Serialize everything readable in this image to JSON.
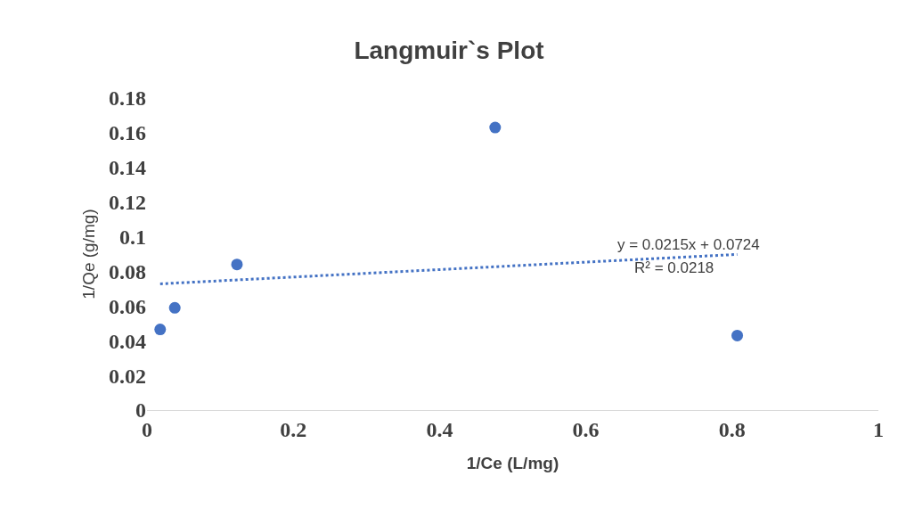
{
  "chart_data": {
    "type": "scatter",
    "title": "Langmuir`s Plot",
    "xlabel": "1/Ce (L/mg)",
    "ylabel": "1/Qe (g/mg)",
    "series": [
      {
        "color": "#4472c4",
        "x": [
          0.018,
          0.038,
          0.123,
          0.476,
          0.807
        ],
        "values": [
          0.0465,
          0.059,
          0.084,
          0.163,
          0.043
        ],
        "marker": "circle"
      },
      {
        "type": "line",
        "color": "#4472c4",
        "x": [
          0.018,
          0.807
        ],
        "values": [
          0.0728,
          0.0898
        ],
        "line_style": "dotted",
        "marker": "none"
      }
    ],
    "xlim": [
      0,
      1
    ],
    "xticks": [
      0,
      0.2,
      0.4,
      0.6,
      0.8,
      1
    ],
    "ylim": [
      0,
      0.18
    ],
    "yticks": [
      0,
      0.02,
      0.04,
      0.06,
      0.08,
      0.1,
      0.12,
      0.14,
      0.16,
      0.18
    ],
    "annotations": [
      "y = 0.0215x + 0.0724",
      "R² = 0.0218"
    ],
    "grid": false
  }
}
